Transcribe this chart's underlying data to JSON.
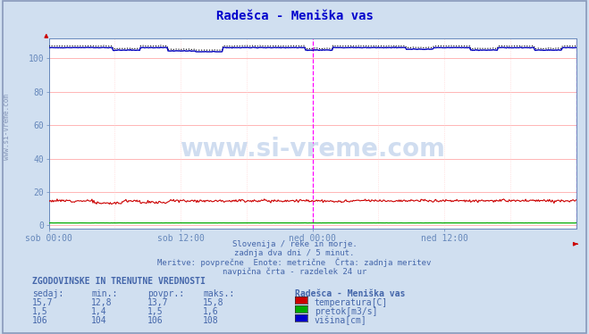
{
  "title": "Radešca - Meniška vas",
  "title_color": "#0000cc",
  "bg_color": "#d0dff0",
  "plot_bg_color": "#ffffff",
  "grid_color_h": "#ffaaaa",
  "grid_color_v": "#ffcccc",
  "grid_color_diag": "#ddddee",
  "ylim": [
    -2,
    112
  ],
  "yticks": [
    0,
    20,
    40,
    60,
    80,
    100
  ],
  "xlabel_ticks": [
    "sob 00:00",
    "sob 12:00",
    "ned 00:00",
    "ned 12:00"
  ],
  "xlabel_tick_positions": [
    0.0,
    0.25,
    0.5,
    0.75
  ],
  "n_points": 576,
  "temp_min": 12.8,
  "temp_max": 15.8,
  "pretok_min": 1.4,
  "pretok_max": 1.6,
  "visina_avg": 106,
  "visina_min": 104,
  "visina_max": 108,
  "temp_color": "#cc0000",
  "pretok_color": "#00aa00",
  "visina_color": "#0000bb",
  "visina_dotted_color": "#000088",
  "vline_color": "#ff00ff",
  "watermark": "www.si-vreme.com",
  "subtitle_lines": [
    "Slovenija / reke in morje.",
    "zadnja dva dni / 5 minut.",
    "Meritve: povprečne  Enote: metrične  Črta: zadnja meritev",
    "navpična črta - razdelek 24 ur"
  ],
  "legend_title": "Radešca - Meniška vas",
  "legend_items": [
    "temperatura[C]",
    "pretok[m3/s]",
    "višina[cm]"
  ],
  "legend_colors": [
    "#cc0000",
    "#00aa00",
    "#0000cc"
  ],
  "table_header": [
    "sedaj:",
    "min.:",
    "povpr.:",
    "maks.:"
  ],
  "table_rows": [
    [
      "15,7",
      "12,8",
      "13,7",
      "15,8"
    ],
    [
      "1,5",
      "1,4",
      "1,5",
      "1,6"
    ],
    [
      "106",
      "104",
      "106",
      "108"
    ]
  ],
  "table_label": "ZGODOVINSKE IN TRENUTNE VREDNOSTI",
  "axis_label_color": "#6688bb",
  "text_color": "#4466aa",
  "left_label": "www.si-vreme.com",
  "border_color": "#8899bb",
  "spine_color": "#6688bb",
  "arrow_color": "#cc0000"
}
